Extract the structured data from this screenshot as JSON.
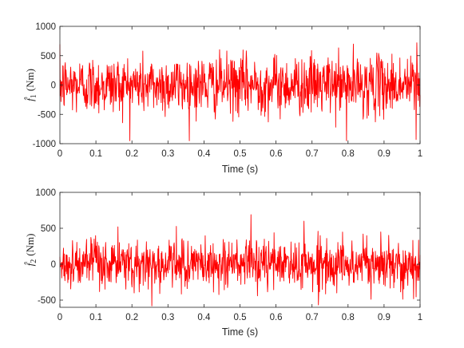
{
  "chart_data": [
    {
      "type": "line",
      "xlabel": "Time (s)",
      "ylabel": {
        "symbol": "f̂",
        "subscript": "1",
        "unit": "(Nm)"
      },
      "xlim": [
        0,
        1
      ],
      "ylim": [
        -1000,
        1000
      ],
      "x_ticks": [
        "0",
        "0.1",
        "0.2",
        "0.3",
        "0.4",
        "0.5",
        "0.6",
        "0.7",
        "0.8",
        "0.9",
        "1"
      ],
      "y_ticks": [
        "-1000",
        "-500",
        "0",
        "500",
        "1000"
      ],
      "series_color": "#ff0000",
      "signal": {
        "description_values": "noise-like torque estimate, roughly zero-mean",
        "x_range": [
          0,
          1
        ],
        "typical_amplitude": 250,
        "max": 720,
        "min": -950,
        "samples": 1000
      }
    },
    {
      "type": "line",
      "xlabel": "Time (s)",
      "ylabel": {
        "symbol": "f̂",
        "subscript": "2",
        "unit": "(Nm)"
      },
      "xlim": [
        0,
        1
      ],
      "ylim": [
        -600,
        1000
      ],
      "x_ticks": [
        "0",
        "0.1",
        "0.2",
        "0.3",
        "0.4",
        "0.5",
        "0.6",
        "0.7",
        "0.8",
        "0.9",
        "1"
      ],
      "y_ticks": [
        "-500",
        "0",
        "500",
        "1000"
      ],
      "series_color": "#ff0000",
      "signal": {
        "description_values": "noise-like torque estimate, roughly zero-mean",
        "x_range": [
          0,
          1
        ],
        "typical_amplitude": 170,
        "max": 690,
        "min": -580,
        "samples": 1000
      }
    }
  ]
}
